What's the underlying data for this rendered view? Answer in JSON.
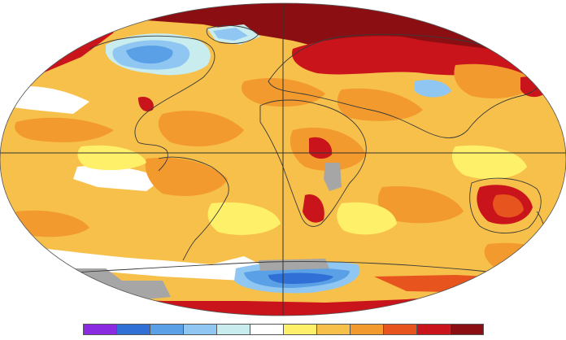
{
  "map": {
    "ocean_base": "#f7c04a",
    "land_outline": "#3a3a3a",
    "grid_line": "#333333",
    "no_data": "#a6a6a6"
  },
  "legend": {
    "colors": [
      "#8a2be2",
      "#2f6fd6",
      "#5aa0e6",
      "#8fc7f2",
      "#c9ecee",
      "#ffffff",
      "#fff06a",
      "#f7c04a",
      "#f39a2e",
      "#e8541d",
      "#c9141b",
      "#8b0f12"
    ]
  }
}
